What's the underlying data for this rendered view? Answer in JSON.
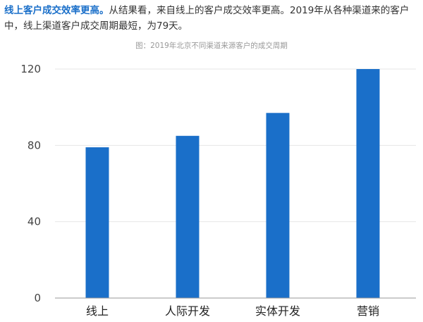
{
  "intro": {
    "lead": "线上客户成交效率更高。",
    "text": "从结果看，来自线上的客户成交效率更高。2019年从各种渠道来的客户中，线上渠道客户成交周期最短，为79天。"
  },
  "chart_data": {
    "type": "bar",
    "title": "图：2019年北京不同渠道来源客户的成交周期",
    "categories": [
      "线上",
      "人际开发",
      "实体开发",
      "营销"
    ],
    "values": [
      79,
      85,
      97,
      120
    ],
    "yticks": [
      0,
      40,
      80,
      120
    ],
    "ylim": [
      0,
      120
    ],
    "grid": true,
    "bar_color": "#1a6fc9"
  }
}
